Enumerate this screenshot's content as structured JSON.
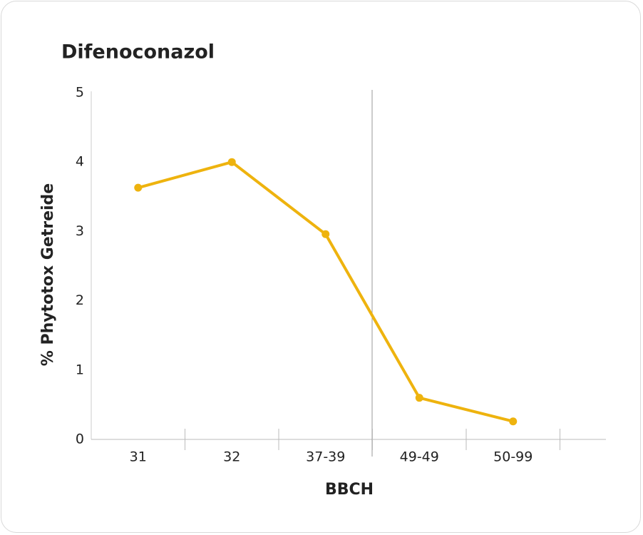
{
  "chart_data": {
    "type": "line",
    "title": "Difenoconazol",
    "x_label": "BBCH",
    "y_label": "% Phytotox Getreide",
    "categories": [
      "31",
      "32",
      "37-39",
      "49-49",
      "50-99"
    ],
    "values": [
      3.63,
      4.0,
      2.96,
      0.6,
      0.26
    ],
    "color": "#eeb30e",
    "ylim": [
      0,
      5
    ],
    "yticks": [
      0,
      1,
      2,
      3,
      4,
      5
    ],
    "grid": false
  }
}
